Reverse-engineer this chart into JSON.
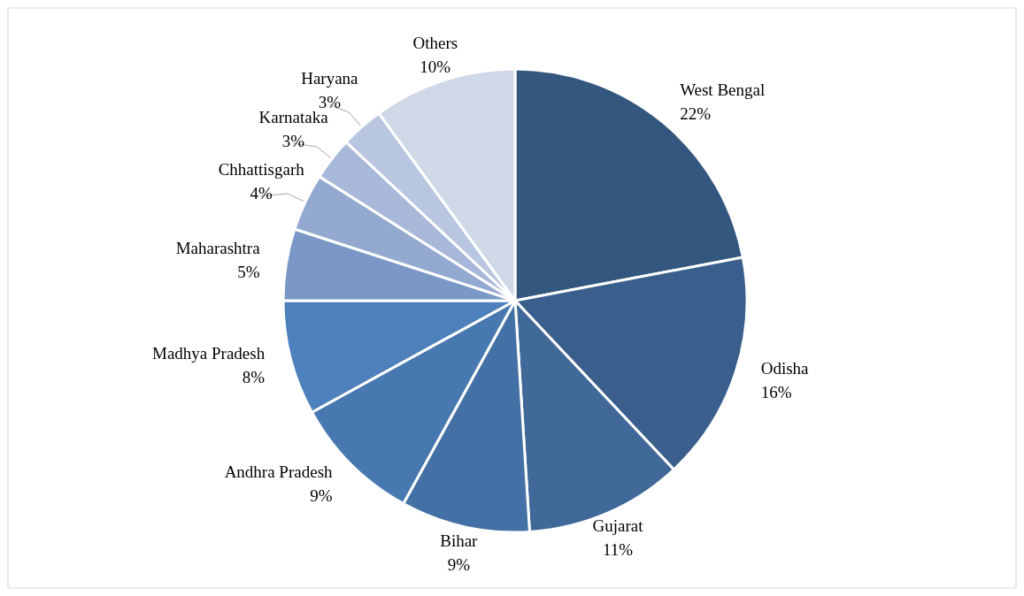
{
  "chart_data": {
    "type": "pie",
    "categories": [
      "West Bengal",
      "Odisha",
      "Gujarat",
      "Bihar",
      "Andhra Pradesh",
      "Madhya Pradesh",
      "Maharashtra",
      "Chhattisgarh",
      "Karnataka",
      "Haryana",
      "Others"
    ],
    "values": [
      22,
      16,
      11,
      9,
      9,
      8,
      5,
      4,
      3,
      3,
      10
    ],
    "colors": [
      "#34577f",
      "#3a5f8c",
      "#406898",
      "#4471a5",
      "#4878b0",
      "#4e80bb",
      "#7a97c6",
      "#93a9d0",
      "#a8b8d8",
      "#b9c6df",
      "#ced8e7"
    ],
    "value_labels": [
      "22%",
      "16%",
      "11%",
      "9%",
      "9%",
      "8%",
      "5%",
      "4%",
      "3%",
      "3%",
      "10%"
    ]
  }
}
